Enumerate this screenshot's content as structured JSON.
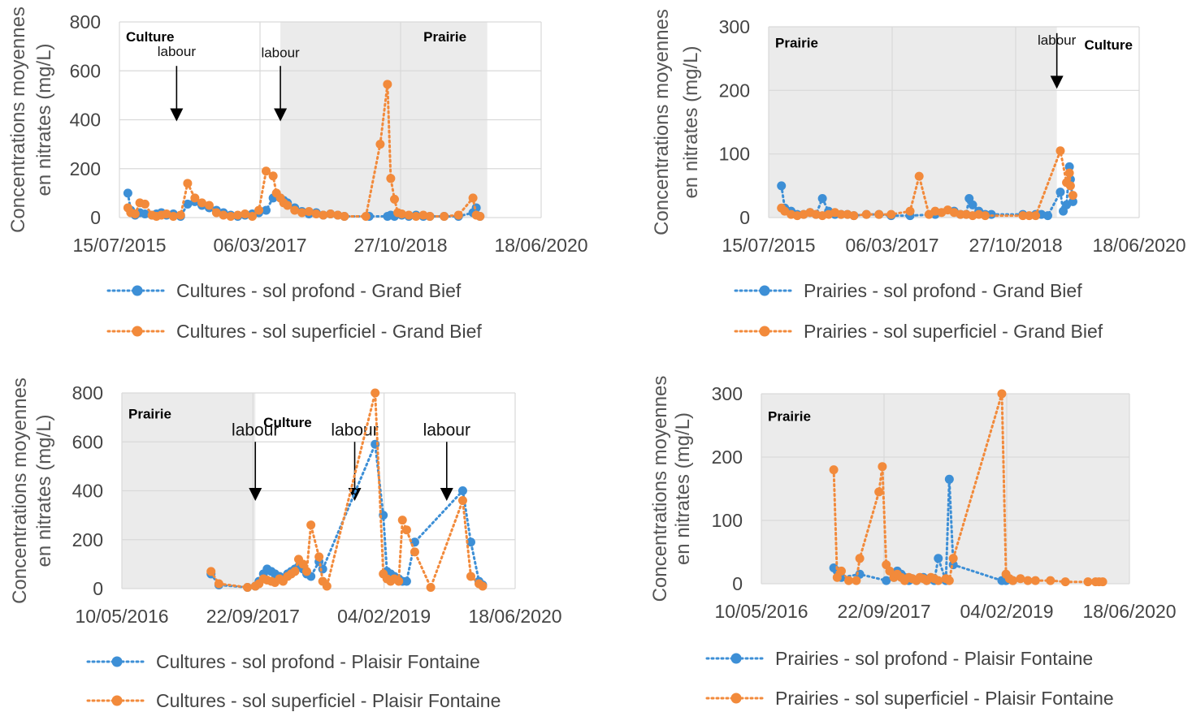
{
  "colors": {
    "blue": "#3d8fd6",
    "orange": "#f28a3b",
    "shade": "#ebebeb",
    "grid": "#d9d9d9"
  },
  "chart_data": [
    {
      "type": "line",
      "ylabel": [
        "Concentrations moyennes",
        "en nitrates (mg/L)"
      ],
      "ylim": [
        0,
        800
      ],
      "yticks": [
        0,
        200,
        400,
        600,
        800
      ],
      "xticks": [
        "15/07/2015",
        "06/03/2017",
        "27/10/2018",
        "18/06/2020"
      ],
      "xrange": [
        "15/07/2015",
        "18/06/2020"
      ],
      "shaded": [
        [
          "01/06/2017",
          "01/11/2019"
        ]
      ],
      "regions": [
        {
          "text": "Culture",
          "x": "15/07/2015",
          "y": 740,
          "anchor": "start"
        },
        {
          "text": "Prairie",
          "x": "01/09/2019",
          "y": 740,
          "anchor": "end"
        }
      ],
      "annotations": [
        {
          "text": "labour",
          "x": "15/03/2016",
          "ytext": 660,
          "ytop": 620,
          "ybottom": 400
        },
        {
          "text": "labour",
          "x": "01/06/2017",
          "ytext": 655,
          "ytop": 620,
          "ybottom": 400
        }
      ],
      "series": [
        {
          "name": "Cultures - sol profond - Grand Bief",
          "color": "blue",
          "x": [
            "20/08/2015",
            "01/09/2015",
            "20/09/2015",
            "10/10/2015",
            "01/11/2015",
            "01/12/2015",
            "20/12/2015",
            "10/01/2016",
            "01/02/2016",
            "01/03/2016",
            "01/04/2016",
            "01/05/2016",
            "01/06/2016",
            "01/07/2016",
            "01/08/2016",
            "01/09/2016",
            "01/10/2016",
            "01/11/2016",
            "01/12/2016",
            "01/01/2017",
            "01/02/2017",
            "01/03/2017",
            "01/04/2017",
            "01/05/2017",
            "15/05/2017",
            "01/06/2017",
            "15/06/2017",
            "01/07/2017",
            "01/08/2017",
            "01/09/2017",
            "01/10/2017",
            "01/11/2017",
            "01/12/2017",
            "01/01/2018",
            "01/02/2018",
            "01/03/2018",
            "15/06/2018",
            "01/09/2018",
            "15/09/2018",
            "01/10/2018",
            "15/10/2018",
            "01/11/2018",
            "01/12/2018",
            "01/01/2019",
            "01/02/2019",
            "01/03/2019",
            "01/05/2019",
            "01/07/2019",
            "01/09/2019",
            "15/09/2019",
            "01/10/2019"
          ],
          "y": [
            100,
            30,
            10,
            20,
            15,
            10,
            15,
            20,
            10,
            15,
            5,
            55,
            65,
            50,
            40,
            30,
            20,
            10,
            5,
            10,
            15,
            20,
            30,
            80,
            90,
            80,
            70,
            60,
            40,
            25,
            15,
            20,
            10,
            15,
            10,
            5,
            5,
            5,
            10,
            5,
            15,
            10,
            5,
            10,
            5,
            5,
            5,
            5,
            20,
            40,
            5
          ]
        },
        {
          "name": "Cultures - sol superficiel - Grand Bief",
          "color": "orange",
          "x": [
            "20/08/2015",
            "01/09/2015",
            "20/09/2015",
            "10/10/2015",
            "01/11/2015",
            "01/12/2015",
            "20/12/2015",
            "10/01/2016",
            "01/02/2016",
            "01/03/2016",
            "01/04/2016",
            "01/05/2016",
            "01/06/2016",
            "01/07/2016",
            "01/08/2016",
            "01/09/2016",
            "01/10/2016",
            "01/11/2016",
            "01/12/2016",
            "01/01/2017",
            "01/02/2017",
            "01/03/2017",
            "01/04/2017",
            "01/05/2017",
            "15/05/2017",
            "01/06/2017",
            "15/06/2017",
            "01/07/2017",
            "01/08/2017",
            "01/09/2017",
            "01/10/2017",
            "01/11/2017",
            "01/12/2017",
            "01/01/2018",
            "01/02/2018",
            "01/03/2018",
            "01/06/2018",
            "01/08/2018",
            "01/09/2018",
            "15/09/2018",
            "01/10/2018",
            "15/10/2018",
            "01/11/2018",
            "01/12/2018",
            "01/01/2019",
            "01/02/2019",
            "01/03/2019",
            "01/05/2019",
            "01/07/2019",
            "01/09/2019",
            "15/09/2019",
            "01/10/2019"
          ],
          "y": [
            40,
            20,
            15,
            60,
            55,
            10,
            5,
            10,
            15,
            5,
            10,
            140,
            80,
            60,
            50,
            20,
            10,
            5,
            10,
            15,
            5,
            30,
            190,
            170,
            100,
            80,
            60,
            50,
            30,
            20,
            25,
            15,
            10,
            15,
            10,
            5,
            5,
            300,
            545,
            160,
            75,
            20,
            15,
            10,
            5,
            10,
            5,
            5,
            10,
            80,
            10,
            5
          ]
        }
      ]
    },
    {
      "type": "line",
      "ylabel": [
        "Concentrations moyennes",
        "en nitrates (mg/L)"
      ],
      "ylim": [
        0,
        300
      ],
      "yticks": [
        0,
        100,
        200,
        300
      ],
      "xticks": [
        "15/07/2015",
        "06/03/2017",
        "27/10/2018",
        "18/06/2020"
      ],
      "xrange": [
        "15/07/2015",
        "18/06/2020"
      ],
      "shaded": [
        [
          "15/07/2015",
          "15/05/2019"
        ]
      ],
      "regions": [
        {
          "text": "Prairie",
          "x": "15/07/2015",
          "y": 275,
          "anchor": "start"
        },
        {
          "text": "Culture",
          "x": "18/06/2020",
          "y": 272,
          "anchor": "end"
        }
      ],
      "annotations": [
        {
          "text": "labour",
          "x": "15/05/2019",
          "ytext": 272,
          "ytop": 290,
          "ybottom": 205
        }
      ],
      "series": [
        {
          "name": "Prairies - sol profond - Grand Bief",
          "color": "blue",
          "x": [
            "15/09/2015",
            "01/10/2015",
            "01/11/2015",
            "01/12/2015",
            "01/01/2016",
            "01/02/2016",
            "01/03/2016",
            "01/04/2016",
            "01/05/2016",
            "01/06/2016",
            "01/07/2016",
            "01/08/2016",
            "01/09/2016",
            "01/11/2016",
            "01/01/2017",
            "01/03/2017",
            "01/06/2017",
            "01/10/2017",
            "01/01/2018",
            "01/02/2018",
            "01/03/2018",
            "15/03/2018",
            "01/04/2018",
            "01/05/2018",
            "01/06/2018",
            "01/07/2018",
            "01/12/2018",
            "01/02/2019",
            "01/03/2019",
            "01/04/2019",
            "01/06/2019",
            "15/06/2019",
            "01/07/2019",
            "15/07/2019",
            "20/07/2019",
            "01/08/2019"
          ],
          "y": [
            50,
            15,
            10,
            5,
            5,
            8,
            5,
            30,
            10,
            5,
            5,
            5,
            3,
            5,
            5,
            3,
            3,
            5,
            10,
            5,
            5,
            30,
            20,
            10,
            5,
            5,
            5,
            5,
            5,
            3,
            40,
            10,
            20,
            80,
            60,
            25
          ]
        },
        {
          "name": "Prairies - sol superficiel - Grand Bief",
          "color": "orange",
          "x": [
            "15/09/2015",
            "01/10/2015",
            "01/11/2015",
            "01/12/2015",
            "01/01/2016",
            "01/02/2016",
            "01/03/2016",
            "01/04/2016",
            "01/05/2016",
            "01/06/2016",
            "01/07/2016",
            "01/08/2016",
            "01/09/2016",
            "01/11/2016",
            "01/01/2017",
            "01/03/2017",
            "01/06/2017",
            "15/07/2017",
            "01/09/2017",
            "01/10/2017",
            "01/11/2017",
            "01/12/2017",
            "01/01/2018",
            "01/02/2018",
            "01/03/2018",
            "01/04/2018",
            "01/05/2018",
            "01/06/2018",
            "01/12/2018",
            "01/01/2019",
            "01/02/2019",
            "01/06/2019",
            "01/07/2019",
            "15/07/2019",
            "20/07/2019",
            "01/08/2019"
          ],
          "y": [
            15,
            10,
            5,
            3,
            5,
            8,
            5,
            3,
            5,
            8,
            5,
            5,
            3,
            5,
            5,
            5,
            10,
            65,
            5,
            10,
            8,
            12,
            8,
            5,
            5,
            3,
            5,
            3,
            3,
            3,
            3,
            105,
            55,
            70,
            50,
            35
          ]
        }
      ]
    },
    {
      "type": "line",
      "ylabel": [
        "Concentrations moyennes",
        "en nitrates (mg/L)"
      ],
      "ylim": [
        0,
        800
      ],
      "yticks": [
        0,
        200,
        400,
        600,
        800
      ],
      "xticks": [
        "10/05/2016",
        "22/09/2017",
        "04/02/2019",
        "18/06/2020"
      ],
      "xrange": [
        "10/05/2016",
        "18/06/2020"
      ],
      "shaded": [
        [
          "10/05/2016",
          "01/10/2017"
        ]
      ],
      "regions": [
        {
          "text": "Prairie",
          "x": "10/05/2016",
          "y": 715,
          "anchor": "start"
        },
        {
          "text": "Culture",
          "x": "01/02/2018",
          "y": 680,
          "anchor": "middle"
        }
      ],
      "annotations": [
        {
          "text": "labour",
          "x": "01/10/2017",
          "ytext": 625,
          "ytop": 600,
          "ybottom": 365
        },
        {
          "text": "labour",
          "x": "15/10/2018",
          "ytext": 625,
          "ytop": 600,
          "ybottom": 365
        },
        {
          "text": "labour",
          "x": "01/10/2019",
          "ytext": 625,
          "ytop": 600,
          "ybottom": 365
        }
      ],
      "series": [
        {
          "name": "Cultures - sol profond - Plaisir Fontaine",
          "color": "blue",
          "x": [
            "15/04/2017",
            "15/05/2017",
            "01/09/2017",
            "01/10/2017",
            "15/10/2017",
            "01/11/2017",
            "15/11/2017",
            "01/12/2017",
            "15/12/2017",
            "01/01/2018",
            "15/01/2018",
            "01/02/2018",
            "15/02/2018",
            "01/03/2018",
            "15/03/2018",
            "01/04/2018",
            "15/04/2018",
            "01/05/2018",
            "01/06/2018",
            "15/06/2018",
            "01/01/2019",
            "01/02/2019",
            "15/02/2019",
            "01/03/2019",
            "15/03/2019",
            "01/04/2019",
            "15/04/2019",
            "01/05/2019",
            "01/06/2019",
            "01/12/2019",
            "01/01/2020",
            "01/02/2020",
            "15/02/2020"
          ],
          "y": [
            60,
            15,
            5,
            10,
            30,
            60,
            80,
            70,
            60,
            50,
            40,
            60,
            70,
            80,
            90,
            80,
            60,
            50,
            110,
            80,
            590,
            300,
            70,
            60,
            50,
            40,
            30,
            30,
            190,
            400,
            190,
            30,
            15
          ]
        },
        {
          "name": "Cultures - sol superficiel - Plaisir Fontaine",
          "color": "orange",
          "x": [
            "15/04/2017",
            "15/05/2017",
            "01/09/2017",
            "01/10/2017",
            "15/10/2017",
            "01/11/2017",
            "15/11/2017",
            "01/12/2017",
            "15/12/2017",
            "01/01/2018",
            "15/01/2018",
            "01/02/2018",
            "15/02/2018",
            "01/03/2018",
            "15/03/2018",
            "01/04/2018",
            "15/04/2018",
            "01/05/2018",
            "01/06/2018",
            "15/06/2018",
            "01/07/2018",
            "01/01/2019",
            "01/02/2019",
            "15/02/2019",
            "01/03/2019",
            "15/03/2019",
            "01/04/2019",
            "15/04/2019",
            "01/05/2019",
            "01/06/2019",
            "01/08/2019",
            "01/12/2019",
            "01/01/2020",
            "01/02/2020",
            "15/02/2020"
          ],
          "y": [
            70,
            20,
            5,
            10,
            20,
            40,
            35,
            30,
            25,
            40,
            30,
            50,
            60,
            70,
            120,
            100,
            70,
            260,
            130,
            30,
            10,
            800,
            60,
            40,
            30,
            40,
            30,
            280,
            240,
            150,
            5,
            360,
            50,
            20,
            10
          ]
        }
      ]
    },
    {
      "type": "line",
      "ylabel": [
        "Concentrations moyennes",
        "en nitrates (mg/L)"
      ],
      "ylim": [
        0,
        300
      ],
      "yticks": [
        0,
        100,
        200,
        300
      ],
      "xticks": [
        "10/05/2016",
        "22/09/2017",
        "04/02/2019",
        "18/06/2020"
      ],
      "xrange": [
        "10/05/2016",
        "18/06/2020"
      ],
      "shaded": [
        [
          "10/05/2016",
          "18/06/2020"
        ]
      ],
      "regions": [
        {
          "text": "Prairie",
          "x": "10/05/2016",
          "y": 265,
          "anchor": "start"
        }
      ],
      "annotations": [],
      "series": [
        {
          "name": "Prairies - sol profond - Plaisir Fontaine",
          "color": "blue",
          "x": [
            "01/03/2017",
            "15/03/2017",
            "01/04/2017",
            "15/06/2017",
            "01/10/2017",
            "01/11/2017",
            "15/11/2017",
            "01/12/2017",
            "15/12/2017",
            "01/01/2018",
            "15/01/2018",
            "01/02/2018",
            "01/03/2018",
            "15/03/2018",
            "01/04/2018",
            "15/04/2018",
            "01/05/2018",
            "01/06/2018",
            "15/06/2018",
            "01/07/2018",
            "15/01/2019",
            "01/02/2019",
            "01/03/2019"
          ],
          "y": [
            25,
            20,
            10,
            15,
            5,
            10,
            20,
            15,
            10,
            5,
            8,
            5,
            10,
            5,
            8,
            5,
            40,
            5,
            165,
            30,
            5,
            5,
            5
          ]
        },
        {
          "name": "Prairies - sol superficiel - Plaisir Fontaine",
          "color": "orange",
          "x": [
            "01/03/2017",
            "15/03/2017",
            "01/04/2017",
            "01/05/2017",
            "01/06/2017",
            "15/06/2017",
            "01/09/2017",
            "15/09/2017",
            "01/10/2017",
            "15/10/2017",
            "01/11/2017",
            "15/11/2017",
            "01/12/2017",
            "15/12/2017",
            "01/01/2018",
            "15/01/2018",
            "01/02/2018",
            "15/02/2018",
            "01/03/2018",
            "15/03/2018",
            "01/04/2018",
            "15/04/2018",
            "01/05/2018",
            "01/06/2018",
            "15/06/2018",
            "01/07/2018",
            "15/01/2019",
            "01/02/2019",
            "15/02/2019",
            "01/03/2019",
            "01/04/2019",
            "01/05/2019",
            "01/06/2019",
            "01/08/2019",
            "01/10/2019",
            "01/01/2020",
            "01/02/2020",
            "15/02/2020",
            "01/03/2020"
          ],
          "y": [
            180,
            10,
            20,
            5,
            5,
            40,
            145,
            185,
            30,
            20,
            10,
            15,
            10,
            5,
            10,
            8,
            5,
            10,
            8,
            5,
            10,
            8,
            5,
            8,
            5,
            40,
            300,
            15,
            8,
            5,
            8,
            5,
            5,
            5,
            3,
            3,
            3,
            3,
            3
          ]
        }
      ]
    }
  ]
}
